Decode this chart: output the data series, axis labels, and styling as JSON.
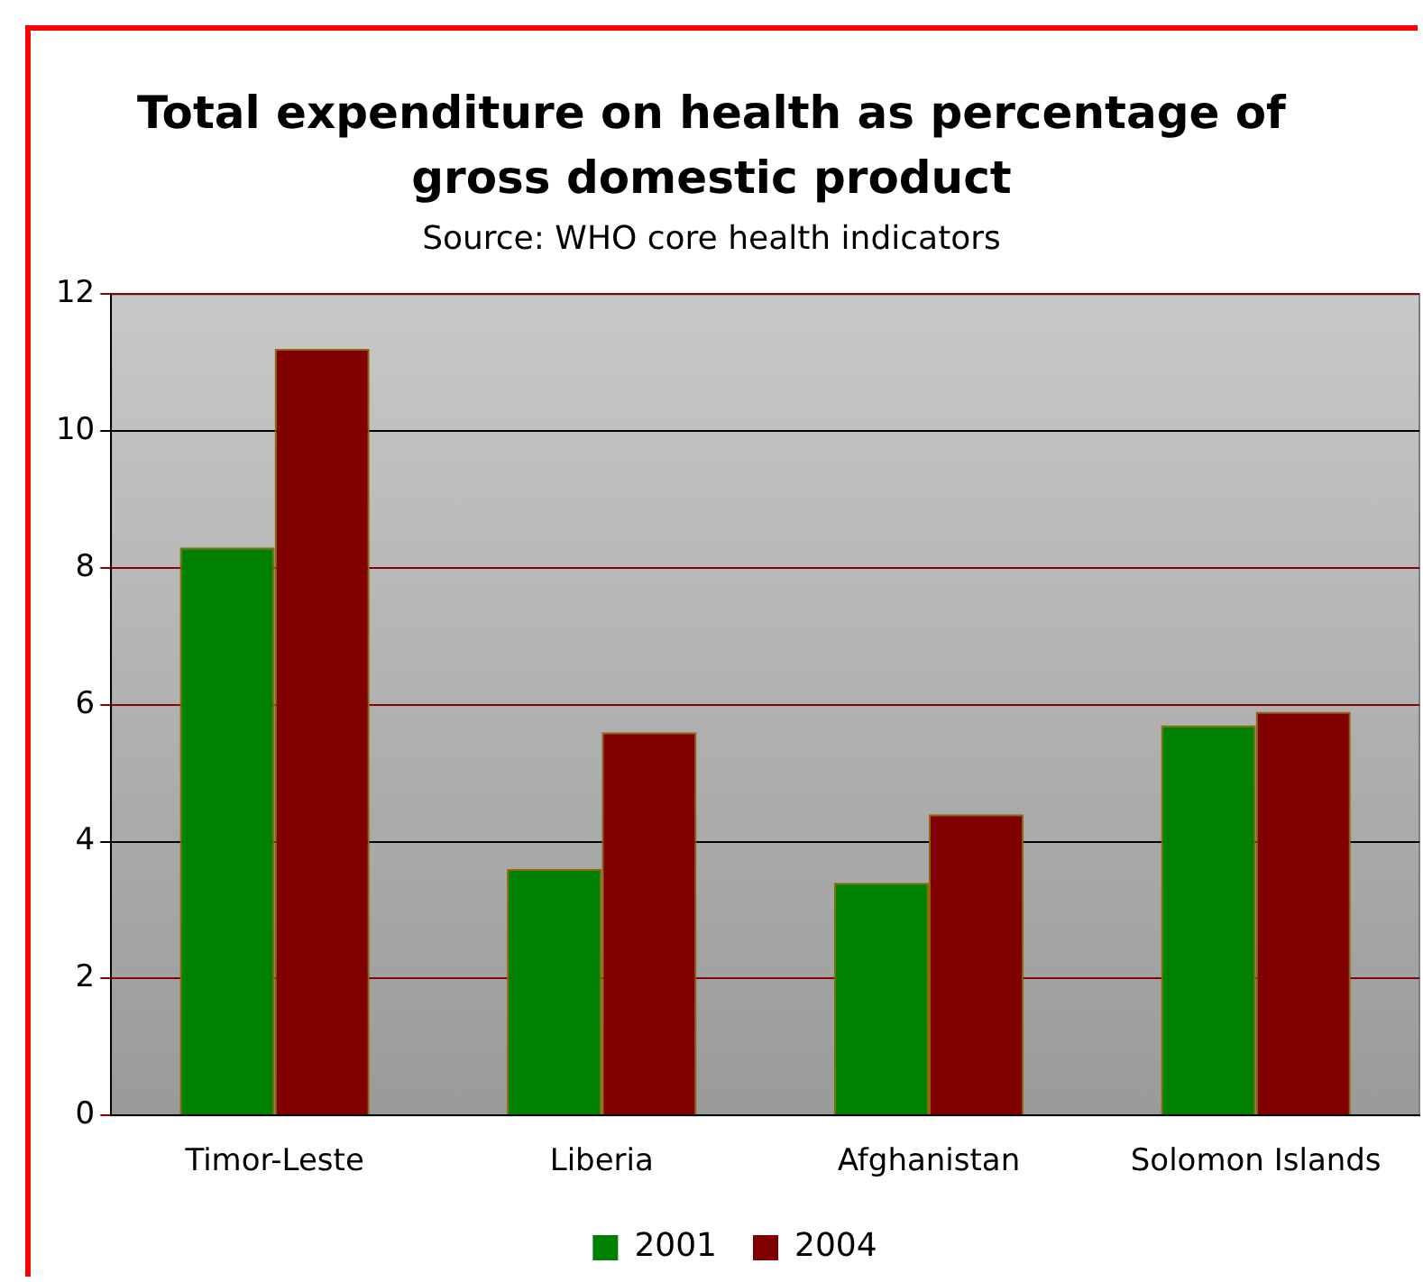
{
  "chart_data": {
    "type": "bar",
    "title": "Total expenditure on health as percentage of gross domestic product",
    "subtitle": "Source: WHO core health indicators",
    "categories": [
      "Timor-Leste",
      "Liberia",
      "Afghanistan",
      "Solomon Islands"
    ],
    "series": [
      {
        "name": "2001",
        "color": "#008000",
        "values": [
          8.3,
          3.6,
          3.4,
          5.7
        ]
      },
      {
        "name": "2004",
        "color": "#800000",
        "values": [
          11.2,
          5.6,
          4.4,
          5.9
        ]
      }
    ],
    "ylim": [
      0,
      12
    ],
    "yticks": [
      0,
      2,
      4,
      6,
      8,
      10,
      12
    ],
    "grid": "y",
    "legend": "bottom"
  }
}
